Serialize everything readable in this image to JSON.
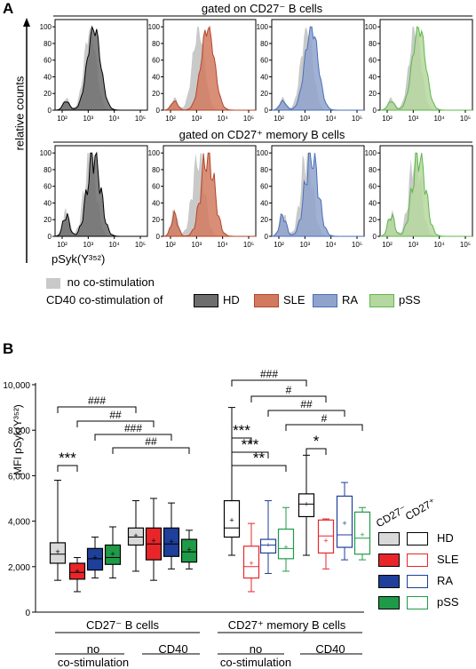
{
  "panel_a": {
    "label": "A",
    "row1_title": "gated on CD27⁻ B cells",
    "row2_title": "gated on CD27⁺ memory B cells",
    "ylabel": "relative counts",
    "xlabel": "pSyk(Y³⁵²)",
    "y_ticks": [
      "0",
      "20",
      "40",
      "60",
      "80",
      "100"
    ],
    "x_ticks": [
      "10²",
      "10³",
      "10⁴",
      "10⁵"
    ],
    "legend_nostim": "no co-stimulation",
    "legend_cd40": "CD40 co-stimulation of",
    "groups": [
      {
        "name": "HD",
        "fill": "#6d6d6d",
        "edge": "#000000"
      },
      {
        "name": "SLE",
        "fill": "#d27a5f",
        "edge": "#b2472b"
      },
      {
        "name": "RA",
        "fill": "#8fa3cc",
        "edge": "#4a6fb8"
      },
      {
        "name": "pSS",
        "fill": "#b7d7a0",
        "edge": "#5cb84a"
      }
    ],
    "nostim_color": "#c9c9c9"
  },
  "panel_b": {
    "label": "B",
    "section_cd27neg": "CD27⁻ B cells",
    "section_cd27pos": "CD27⁺ memory B cells",
    "cond_no": "no",
    "cond_co": "co-stimulation",
    "cond_cd40": "CD40",
    "legend_head_neg": "CD27⁻",
    "legend_head_pos": "CD27⁺",
    "sig": {
      "s1": "###",
      "s2": "##",
      "s3": "###",
      "s4": "##",
      "s5": "***",
      "m1": "###",
      "m2": "#",
      "m3": "##",
      "m4": "#",
      "m5": "***",
      "m6": "***",
      "m7": "**",
      "m8": "*"
    }
  },
  "chart_data": {
    "type": "box",
    "ylabel": "MFI pSyk(Y³⁵²)",
    "ylim": [
      0,
      10000
    ],
    "y_ticks": [
      "0",
      "2,000",
      "4,000",
      "6,000",
      "8,000",
      "10,000"
    ],
    "series": [
      {
        "name": "HD",
        "color": "#d9d9d9",
        "outline": "#000000"
      },
      {
        "name": "SLE",
        "color": "#e8262a",
        "outline": "#e8262a"
      },
      {
        "name": "RA",
        "color": "#1e3f9a",
        "outline": "#1e3f9a"
      },
      {
        "name": "pSS",
        "color": "#1f9a48",
        "outline": "#1f9a48"
      }
    ],
    "boxes": [
      {
        "group": "CD27- B cells",
        "stim": "no",
        "series": "HD",
        "min": 1400,
        "q1": 2150,
        "median": 2550,
        "q3": 3050,
        "max": 5800,
        "mean": 2650
      },
      {
        "group": "CD27- B cells",
        "stim": "no",
        "series": "SLE",
        "min": 900,
        "q1": 1450,
        "median": 1750,
        "q3": 2150,
        "max": 2400,
        "mean": 1800
      },
      {
        "group": "CD27- B cells",
        "stim": "no",
        "series": "RA",
        "min": 1500,
        "q1": 1850,
        "median": 2350,
        "q3": 2800,
        "max": 3300,
        "mean": 2400
      },
      {
        "group": "CD27- B cells",
        "stim": "no",
        "series": "pSS",
        "min": 1500,
        "q1": 2100,
        "median": 2400,
        "q3": 2950,
        "max": 3750,
        "mean": 2550
      },
      {
        "group": "CD27- B cells",
        "stim": "CD40",
        "series": "HD",
        "min": 1800,
        "q1": 2950,
        "median": 3300,
        "q3": 3700,
        "max": 4900,
        "mean": 3350
      },
      {
        "group": "CD27- B cells",
        "stim": "CD40",
        "series": "SLE",
        "min": 1400,
        "q1": 2300,
        "median": 3000,
        "q3": 3700,
        "max": 5000,
        "mean": 3150
      },
      {
        "group": "CD27- B cells",
        "stim": "CD40",
        "series": "RA",
        "min": 1900,
        "q1": 2450,
        "median": 3000,
        "q3": 3700,
        "max": 4800,
        "mean": 3100
      },
      {
        "group": "CD27- B cells",
        "stim": "CD40",
        "series": "pSS",
        "min": 1900,
        "q1": 2200,
        "median": 2650,
        "q3": 3200,
        "max": 3600,
        "mean": 2750
      },
      {
        "group": "CD27+ memory B cells",
        "stim": "no",
        "series": "HD",
        "min": 2500,
        "q1": 3300,
        "median": 3700,
        "q3": 4900,
        "max": 9000,
        "mean": 4050
      },
      {
        "group": "CD27+ memory B cells",
        "stim": "no",
        "series": "SLE",
        "min": 900,
        "q1": 1500,
        "median": 2000,
        "q3": 2900,
        "max": 3900,
        "mean": 2150
      },
      {
        "group": "CD27+ memory B cells",
        "stim": "no",
        "series": "RA",
        "min": 1700,
        "q1": 2600,
        "median": 2950,
        "q3": 3200,
        "max": 4900,
        "mean": 2950
      },
      {
        "group": "CD27+ memory B cells",
        "stim": "no",
        "series": "pSS",
        "min": 1800,
        "q1": 2350,
        "median": 2800,
        "q3": 3650,
        "max": 4600,
        "mean": 2850
      },
      {
        "group": "CD27+ memory B cells",
        "stim": "CD40",
        "series": "HD",
        "min": 2500,
        "q1": 4200,
        "median": 4750,
        "q3": 5200,
        "max": 6900,
        "mean": 4750
      },
      {
        "group": "CD27+ memory B cells",
        "stim": "CD40",
        "series": "SLE",
        "min": 1900,
        "q1": 2600,
        "median": 3350,
        "q3": 4050,
        "max": 4100,
        "mean": 3150
      },
      {
        "group": "CD27+ memory B cells",
        "stim": "CD40",
        "series": "RA",
        "min": 2300,
        "q1": 2850,
        "median": 3400,
        "q3": 5100,
        "max": 5700,
        "mean": 3900
      },
      {
        "group": "CD27+ memory B cells",
        "stim": "CD40",
        "series": "pSS",
        "min": 2300,
        "q1": 2550,
        "median": 3250,
        "q3": 4400,
        "max": 4600,
        "mean": 3400
      }
    ]
  }
}
